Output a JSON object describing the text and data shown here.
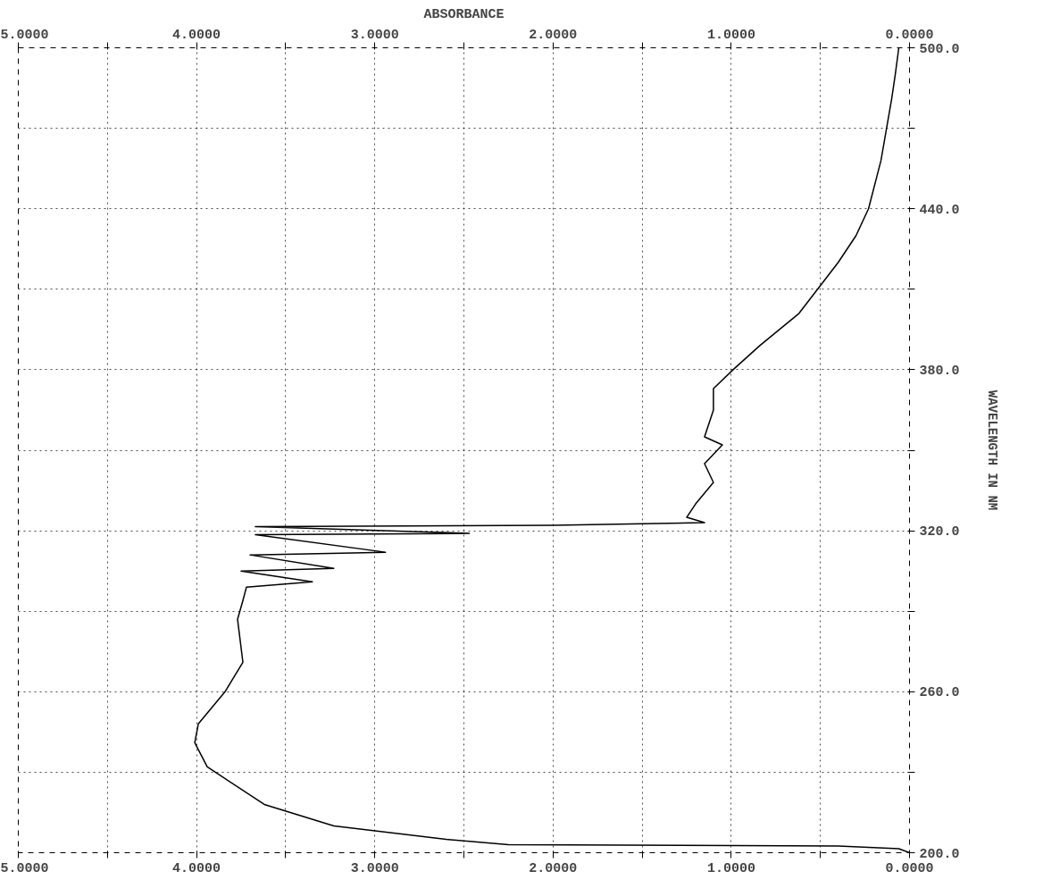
{
  "chart_data": {
    "type": "line",
    "title": "ABSORBANCE",
    "ylabel": "WAVELENGTH IN NM",
    "x": [
      0.06,
      0.08,
      0.1,
      0.16,
      0.23,
      0.3,
      0.4,
      0.62,
      0.84,
      0.99,
      1.1,
      1.1,
      1.15,
      1.05,
      1.15,
      1.1,
      1.2,
      1.25,
      1.15,
      2.0,
      3.67,
      2.47,
      3.67,
      2.94,
      3.7,
      3.23,
      3.75,
      3.35,
      3.72,
      3.74,
      3.77,
      3.74,
      3.84,
      3.99,
      4.01,
      3.94,
      3.62,
      3.23,
      2.6,
      2.25,
      0.4,
      0.06,
      0.0
    ],
    "series": [
      {
        "color": "#000000",
        "values": [
          500,
          490,
          481,
          458,
          440,
          430,
          420,
          401,
          389,
          380,
          373,
          365,
          355,
          352,
          345,
          338,
          330,
          325,
          323,
          322,
          321.5,
          319,
          318.5,
          312,
          311,
          306,
          305,
          301,
          299,
          294,
          287,
          271,
          260,
          248,
          241,
          232,
          218,
          210,
          205,
          203,
          202.5,
          201.5,
          200
        ]
      }
    ],
    "xlim": [
      5.0,
      0.0
    ],
    "xticks": [
      {
        "value": 5.0,
        "label": "5.0000"
      },
      {
        "value": 4.5,
        "label": null
      },
      {
        "value": 4.0,
        "label": "4.0000"
      },
      {
        "value": 3.5,
        "label": null
      },
      {
        "value": 3.0,
        "label": "3.0000"
      },
      {
        "value": 2.5,
        "label": null
      },
      {
        "value": 2.0,
        "label": "2.0000"
      },
      {
        "value": 1.5,
        "label": null
      },
      {
        "value": 1.0,
        "label": "1.0000"
      },
      {
        "value": 0.5,
        "label": null
      },
      {
        "value": 0.0,
        "label": "0.0000"
      }
    ],
    "x2lim": [
      5.0,
      0.0
    ],
    "x2ticks": [
      {
        "value": 5.0,
        "label": "5.0000"
      },
      {
        "value": 4.5,
        "label": null
      },
      {
        "value": 4.0,
        "label": "4.0000"
      },
      {
        "value": 3.5,
        "label": null
      },
      {
        "value": 3.0,
        "label": "3.0000"
      },
      {
        "value": 2.5,
        "label": null
      },
      {
        "value": 2.0,
        "label": "2.0000"
      },
      {
        "value": 1.5,
        "label": null
      },
      {
        "value": 1.0,
        "label": "1.0000"
      },
      {
        "value": 0.5,
        "label": null
      },
      {
        "value": 0.0,
        "label": "0.0000"
      }
    ],
    "ylim": [
      200,
      500
    ],
    "yticks": [
      {
        "value": 200,
        "label": "200.0"
      },
      {
        "value": 230,
        "label": null
      },
      {
        "value": 260,
        "label": "260.0"
      },
      {
        "value": 290,
        "label": null
      },
      {
        "value": 320,
        "label": "320.0"
      },
      {
        "value": 350,
        "label": null
      },
      {
        "value": 380,
        "label": "380.0"
      },
      {
        "value": 410,
        "label": null
      },
      {
        "value": 440,
        "label": "440.0"
      },
      {
        "value": 470,
        "label": null
      },
      {
        "value": 500,
        "label": "500.0"
      }
    ],
    "grid": true
  }
}
